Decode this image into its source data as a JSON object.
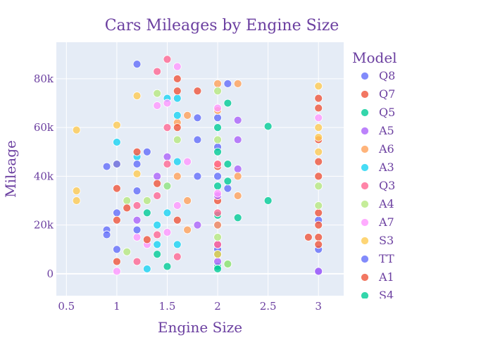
{
  "chart_data": {
    "type": "scatter",
    "title": "Cars Mileages by Engine Size",
    "xlabel": "Engine Size",
    "ylabel": "Mileage",
    "xlim": [
      0.4,
      3.25
    ],
    "ylim": [
      -9000,
      95000
    ],
    "x_ticks": [
      0.5,
      1,
      1.5,
      2,
      2.5,
      3
    ],
    "x_tick_labels": [
      "0.5",
      "1",
      "1.5",
      "2",
      "2.5",
      "3"
    ],
    "y_ticks": [
      0,
      20000,
      40000,
      60000,
      80000
    ],
    "y_tick_labels": [
      "0",
      "20k",
      "40k",
      "60k",
      "80k"
    ],
    "grid": true,
    "legend_title": "Model",
    "legend_position": "right",
    "series": [
      {
        "name": "Q8",
        "color": "#636efa",
        "points": [
          [
            2,
            64000
          ],
          [
            2,
            40000
          ],
          [
            2,
            20000
          ],
          [
            2,
            10000
          ],
          [
            3,
            22000
          ],
          [
            3,
            10000
          ],
          [
            3,
            1000
          ],
          [
            1.8,
            64000
          ],
          [
            1.8,
            40000
          ],
          [
            2.1,
            35000
          ],
          [
            2,
            52000
          ],
          [
            2.1,
            78000
          ]
        ]
      },
      {
        "name": "Q7",
        "color": "#EF553B",
        "points": [
          [
            3,
            72000
          ],
          [
            3,
            55000
          ],
          [
            3,
            40000
          ],
          [
            3,
            25000
          ],
          [
            3,
            15000
          ],
          [
            3,
            12000
          ],
          [
            2.9,
            15000
          ],
          [
            3,
            68000
          ],
          [
            2,
            44000
          ],
          [
            2,
            30000
          ],
          [
            3,
            20000
          ],
          [
            3,
            46000
          ]
        ]
      },
      {
        "name": "Q5",
        "color": "#00cc96",
        "points": [
          [
            2,
            60000
          ],
          [
            2,
            50000
          ],
          [
            2,
            36000
          ],
          [
            2,
            24000
          ],
          [
            2,
            8000
          ],
          [
            2,
            3000
          ],
          [
            2.5,
            60500
          ],
          [
            2.5,
            30000
          ],
          [
            2.2,
            23000
          ],
          [
            2.1,
            4000
          ],
          [
            2.1,
            45000
          ],
          [
            2.1,
            70000
          ]
        ]
      },
      {
        "name": "A5",
        "color": "#ab63fa",
        "points": [
          [
            2,
            32000
          ],
          [
            2,
            20000
          ],
          [
            2,
            12000
          ],
          [
            2,
            5000
          ],
          [
            2.2,
            63000
          ],
          [
            2.2,
            43000
          ],
          [
            1.8,
            20000
          ],
          [
            1.4,
            40000
          ],
          [
            1.2,
            22000
          ],
          [
            1.5,
            48000
          ],
          [
            2.2,
            55000
          ],
          [
            3,
            1000
          ]
        ]
      },
      {
        "name": "A6",
        "color": "#FFA15A",
        "points": [
          [
            2,
            78000
          ],
          [
            2,
            67000
          ],
          [
            2,
            45000
          ],
          [
            2.2,
            78000
          ],
          [
            2.2,
            32000
          ],
          [
            2.2,
            40000
          ],
          [
            1.7,
            30000
          ],
          [
            1.7,
            18000
          ],
          [
            1.6,
            40000
          ],
          [
            1.6,
            62000
          ],
          [
            1.7,
            65000
          ],
          [
            2,
            20000
          ]
        ]
      },
      {
        "name": "A3",
        "color": "#19d3f3",
        "points": [
          [
            1.6,
            65000
          ],
          [
            1.6,
            46000
          ],
          [
            1.5,
            36000
          ],
          [
            1.5,
            25000
          ],
          [
            1.4,
            12000
          ],
          [
            1.3,
            2000
          ],
          [
            1.2,
            48000
          ],
          [
            1,
            54000
          ],
          [
            1.6,
            12000
          ],
          [
            1.5,
            72000
          ],
          [
            1.6,
            72000
          ],
          [
            1.4,
            20000
          ]
        ]
      },
      {
        "name": "Q3",
        "color": "#FF6692",
        "points": [
          [
            1.4,
            83000
          ],
          [
            1.5,
            88000
          ],
          [
            1.5,
            60000
          ],
          [
            1.4,
            32000
          ],
          [
            1.2,
            28000
          ],
          [
            1.6,
            7000
          ],
          [
            1.4,
            16000
          ],
          [
            2,
            45000
          ],
          [
            2,
            25000
          ],
          [
            1.5,
            45000
          ],
          [
            1.2,
            5000
          ],
          [
            2,
            12000
          ]
        ]
      },
      {
        "name": "A4",
        "color": "#B6E880",
        "points": [
          [
            1.4,
            74000
          ],
          [
            1.1,
            30000
          ],
          [
            1.1,
            9000
          ],
          [
            1.5,
            36000
          ],
          [
            1.6,
            55000
          ],
          [
            2,
            75000
          ],
          [
            2,
            55000
          ],
          [
            2,
            15000
          ],
          [
            2.1,
            4000
          ],
          [
            3,
            36000
          ],
          [
            3,
            28000
          ],
          [
            1.3,
            30000
          ]
        ]
      },
      {
        "name": "A7",
        "color": "#FF97FF",
        "points": [
          [
            1.4,
            69000
          ],
          [
            1.5,
            70000
          ],
          [
            1.6,
            85000
          ],
          [
            1.2,
            15000
          ],
          [
            1,
            1000
          ],
          [
            1.3,
            12000
          ],
          [
            1.5,
            17000
          ],
          [
            1.6,
            28000
          ],
          [
            2,
            68000
          ],
          [
            3,
            64000
          ],
          [
            2,
            33000
          ],
          [
            1.7,
            46000
          ]
        ]
      },
      {
        "name": "S3",
        "color": "#FECB52",
        "points": [
          [
            0.6,
            59000
          ],
          [
            0.6,
            34000
          ],
          [
            0.6,
            30000
          ],
          [
            1,
            61000
          ],
          [
            1,
            45000
          ],
          [
            1.2,
            41000
          ],
          [
            1.2,
            73000
          ],
          [
            3,
            77000
          ],
          [
            3,
            60000
          ],
          [
            3,
            56000
          ],
          [
            3,
            50000
          ],
          [
            2,
            8000
          ]
        ]
      },
      {
        "name": "TT",
        "color": "#636efa",
        "points": [
          [
            1,
            45000
          ],
          [
            1,
            25000
          ],
          [
            1,
            10000
          ],
          [
            1.2,
            34000
          ],
          [
            1.2,
            45000
          ],
          [
            1.2,
            18000
          ],
          [
            0.9,
            18000
          ],
          [
            0.9,
            16000
          ],
          [
            1.2,
            86000
          ],
          [
            0.9,
            44000
          ],
          [
            1.3,
            50000
          ],
          [
            1.8,
            55000
          ]
        ]
      },
      {
        "name": "A1",
        "color": "#EF553B",
        "points": [
          [
            1,
            35000
          ],
          [
            1,
            22000
          ],
          [
            1,
            5000
          ],
          [
            1.2,
            50000
          ],
          [
            1.4,
            37000
          ],
          [
            1.6,
            60000
          ],
          [
            1.6,
            75000
          ],
          [
            1.6,
            80000
          ],
          [
            1.3,
            14000
          ],
          [
            1.1,
            27000
          ],
          [
            1.6,
            22000
          ],
          [
            1.8,
            75000
          ]
        ]
      },
      {
        "name": "S4",
        "color": "#00cc96",
        "points": [
          [
            1.3,
            25000
          ],
          [
            1.4,
            8000
          ],
          [
            1.5,
            3000
          ],
          [
            2,
            2000
          ],
          [
            2.1,
            38000
          ]
        ]
      }
    ]
  }
}
